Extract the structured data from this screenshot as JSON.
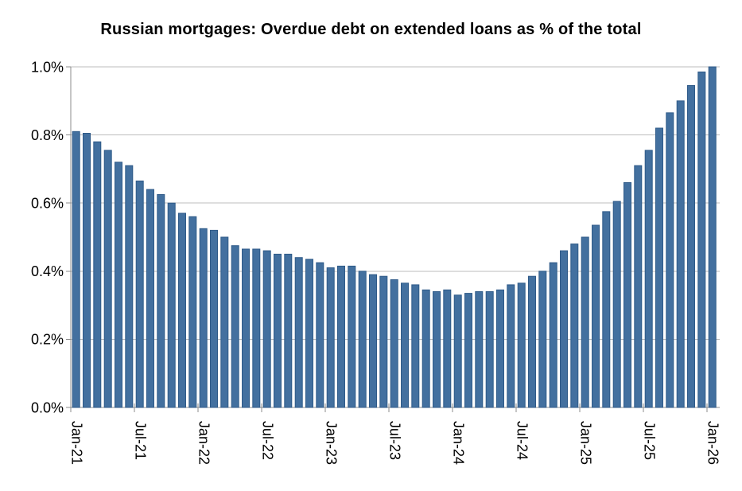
{
  "chart_data": {
    "type": "bar",
    "title": "Russian mortgages: Overdue debt on extended loans as % of the total",
    "unit": "percent",
    "categories": [
      "Jan-21",
      "Feb-21",
      "Mar-21",
      "Apr-21",
      "May-21",
      "Jun-21",
      "Jul-21",
      "Aug-21",
      "Sep-21",
      "Oct-21",
      "Nov-21",
      "Dec-21",
      "Jan-22",
      "Feb-22",
      "Mar-22",
      "Apr-22",
      "May-22",
      "Jun-22",
      "Jul-22",
      "Aug-22",
      "Sep-22",
      "Oct-22",
      "Nov-22",
      "Dec-22",
      "Jan-23",
      "Feb-23",
      "Mar-23",
      "Apr-23",
      "May-23",
      "Jun-23",
      "Jul-23",
      "Aug-23",
      "Sep-23",
      "Oct-23",
      "Nov-23",
      "Dec-23",
      "Jan-24",
      "Feb-24",
      "Mar-24",
      "Apr-24",
      "May-24",
      "Jun-24",
      "Jul-24",
      "Aug-24",
      "Sep-24",
      "Oct-24",
      "Nov-24",
      "Dec-24",
      "Jan-25",
      "Feb-25",
      "Mar-25",
      "Apr-25",
      "May-25",
      "Jun-25",
      "Jul-25",
      "Aug-25",
      "Sep-25",
      "Oct-25",
      "Nov-25",
      "Dec-25",
      "Jan-26"
    ],
    "values": [
      0.81,
      0.805,
      0.78,
      0.755,
      0.72,
      0.71,
      0.665,
      0.64,
      0.625,
      0.6,
      0.57,
      0.56,
      0.525,
      0.52,
      0.5,
      0.475,
      0.465,
      0.465,
      0.46,
      0.45,
      0.45,
      0.44,
      0.435,
      0.425,
      0.41,
      0.415,
      0.415,
      0.4,
      0.39,
      0.385,
      0.375,
      0.365,
      0.36,
      0.345,
      0.34,
      0.345,
      0.33,
      0.335,
      0.34,
      0.34,
      0.345,
      0.36,
      0.365,
      0.385,
      0.4,
      0.425,
      0.46,
      0.48,
      0.5,
      0.535,
      0.575,
      0.605,
      0.66,
      0.71,
      0.755,
      0.82,
      0.865,
      0.9,
      0.945,
      0.985,
      1.0
    ],
    "x_tick_labels": [
      "Jan-21",
      "Jul-21",
      "Jan-22",
      "Jul-22",
      "Jan-23",
      "Jul-23",
      "Jan-24",
      "Jul-24",
      "Jan-25",
      "Jul-25",
      "Jan-26"
    ],
    "x_label_interval": 6,
    "y_ticks": [
      0.0,
      0.2,
      0.4,
      0.6,
      0.8,
      1.0
    ],
    "y_tick_labels": [
      "0.0%",
      "0.2%",
      "0.4%",
      "0.6%",
      "0.8%",
      "1.0%"
    ],
    "ylim": [
      0.0,
      1.0
    ],
    "grid": "horizontal",
    "legend": "none",
    "colors": {
      "bar_fill": "#43709f",
      "bar_border": "#2f5a88",
      "gridline": "#bcbcbc",
      "axis": "#8c8c8c",
      "text": "#000000",
      "background": "#ffffff"
    }
  }
}
